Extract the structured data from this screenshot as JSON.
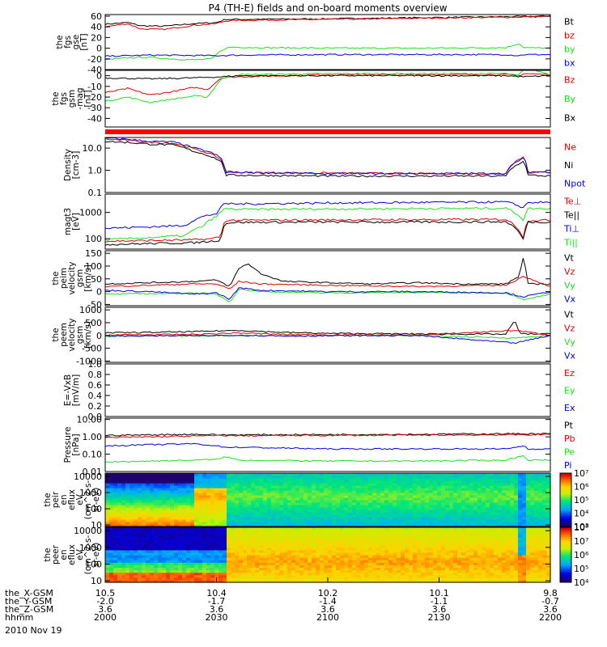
{
  "title": "P4 (TH-E) fields and on-board moments overview",
  "colors": {
    "black": "#000000",
    "red": "#dd0000",
    "green": "#22dd22",
    "blue": "#0000dd"
  },
  "footer": {
    "rows": [
      {
        "label": "the_X-GSM",
        "values": [
          "10.5",
          "10.4",
          "10.2",
          "10.1",
          "9.8"
        ]
      },
      {
        "label": "the_Y-GSM",
        "values": [
          "-2.0",
          "-1.7",
          "-1.4",
          "-1.1",
          "-0.7"
        ]
      },
      {
        "label": "the_Z-GSM",
        "values": [
          "3.6",
          "3.6",
          "3.6",
          "3.6",
          "3.6"
        ]
      },
      {
        "label": "hhmm",
        "values": [
          "2000",
          "2030",
          "2100",
          "2130",
          "2200"
        ]
      }
    ],
    "date": "2010 Nov 19"
  },
  "chart_data": [
    {
      "id": "fgs-gse",
      "type": "line",
      "ylabel": [
        "the",
        "fgs",
        "gse",
        "[nT]"
      ],
      "scale": "linear",
      "ylim": [
        -40,
        63
      ],
      "yticks": [
        -40,
        -20,
        0,
        20,
        40,
        60
      ],
      "series": [
        {
          "name": "Bt",
          "color": "black",
          "x": [
            0,
            0.05,
            0.08,
            0.13,
            0.2,
            0.25,
            0.27,
            0.3,
            0.5,
            0.7,
            0.9,
            0.99,
            1
          ],
          "values": [
            45,
            48,
            42,
            41,
            46,
            48,
            54,
            54,
            55,
            57,
            59,
            60,
            61
          ]
        },
        {
          "name": "bz",
          "color": "red",
          "x": [
            0,
            0.05,
            0.08,
            0.13,
            0.2,
            0.25,
            0.27,
            0.3,
            0.5,
            0.7,
            0.9,
            0.99,
            1
          ],
          "values": [
            40,
            46,
            36,
            35,
            43,
            46,
            51,
            52,
            54,
            56,
            58,
            59,
            60
          ]
        },
        {
          "name": "by",
          "color": "green",
          "x": [
            0,
            0.05,
            0.1,
            0.15,
            0.2,
            0.24,
            0.26,
            0.28,
            0.35,
            0.5,
            0.7,
            0.9,
            0.93,
            0.94,
            1
          ],
          "values": [
            -22,
            -18,
            -17,
            -20,
            -22,
            -20,
            -4,
            2,
            1,
            0,
            0,
            1,
            9,
            1,
            0
          ]
        },
        {
          "name": "bx",
          "color": "blue",
          "x": [
            0,
            0.1,
            0.25,
            0.3,
            0.5,
            0.7,
            0.9,
            0.93,
            0.94,
            1
          ],
          "values": [
            -15,
            -13,
            -14,
            -13,
            -12,
            -12,
            -12,
            -14,
            -12,
            -12
          ]
        }
      ]
    },
    {
      "id": "fgs-gsm-mag",
      "type": "line",
      "ylabel": [
        "the",
        "fgs",
        "gsm",
        "-mag",
        "[nT]"
      ],
      "scale": "linear",
      "ylim": [
        -48,
        5
      ],
      "yticks": [
        -40,
        -30,
        -20,
        -10,
        0
      ],
      "series": [
        {
          "name": "Bz",
          "color": "red",
          "x": [
            0,
            0.05,
            0.1,
            0.15,
            0.2,
            0.23,
            0.26,
            0.3,
            0.5,
            0.7,
            0.9,
            0.93,
            0.94,
            1
          ],
          "values": [
            -16,
            -12,
            -18,
            -15,
            -11,
            -13,
            -2,
            -1,
            1,
            1,
            1,
            0,
            2,
            1
          ]
        },
        {
          "name": "By",
          "color": "green",
          "x": [
            0,
            0.05,
            0.1,
            0.15,
            0.2,
            0.23,
            0.26,
            0.3,
            0.5,
            0.7,
            0.9,
            0.93,
            0.94,
            1
          ],
          "values": [
            -24,
            -20,
            -25,
            -22,
            -19,
            -20,
            -3,
            1,
            2,
            2,
            2,
            0,
            8,
            1
          ]
        },
        {
          "name": "Bx",
          "color": "black",
          "x": [
            0,
            0.1,
            0.2,
            0.26,
            0.3,
            0.5,
            0.7,
            0.9,
            0.94,
            1
          ],
          "values": [
            -2,
            -3,
            -2,
            -1,
            0,
            0,
            0,
            0,
            -1,
            0
          ]
        }
      ]
    },
    {
      "id": "gap",
      "type": "bar"
    },
    {
      "id": "density",
      "type": "line",
      "ylabel": [
        "Density",
        "[cm-3]"
      ],
      "scale": "log",
      "ylim": [
        0.1,
        30
      ],
      "yticks": [
        0.1,
        1.0,
        10.0
      ],
      "yticklabels": [
        "0.1",
        "1.0",
        "10.0"
      ],
      "series": [
        {
          "name": "Ne",
          "color": "red",
          "x": [
            0,
            0.05,
            0.1,
            0.15,
            0.2,
            0.24,
            0.26,
            0.27,
            0.3,
            0.5,
            0.7,
            0.9,
            0.94,
            0.95,
            1
          ],
          "values": [
            25,
            22,
            18,
            17,
            9,
            5,
            3,
            0.9,
            0.8,
            0.75,
            0.7,
            0.7,
            4,
            0.8,
            0.8
          ]
        },
        {
          "name": "Ni",
          "color": "black",
          "x": [
            0,
            0.05,
            0.1,
            0.15,
            0.2,
            0.24,
            0.26,
            0.27,
            0.3,
            0.5,
            0.7,
            0.9,
            0.94,
            0.95,
            1
          ],
          "values": [
            20,
            18,
            15,
            14,
            7,
            4,
            2.5,
            0.6,
            0.6,
            0.55,
            0.55,
            0.55,
            2.5,
            0.6,
            0.55
          ]
        },
        {
          "name": "Npot",
          "color": "blue",
          "x": [
            0,
            0.05,
            0.1,
            0.15,
            0.2,
            0.24,
            0.26,
            0.27,
            0.3,
            0.5,
            0.7,
            0.9,
            0.94,
            0.95,
            1
          ],
          "values": [
            28,
            25,
            20,
            19,
            10,
            6,
            3.5,
            0.8,
            0.8,
            0.7,
            0.72,
            0.72,
            3.5,
            0.85,
            0.85
          ]
        }
      ]
    },
    {
      "id": "temperature",
      "type": "line",
      "ylabel": [
        "magt3",
        "[eV]"
      ],
      "scale": "log",
      "ylim": [
        40,
        5000
      ],
      "yticks": [
        100,
        1000
      ],
      "yticklabels": [
        "100",
        "1000"
      ],
      "series": [
        {
          "name": "Te⊥",
          "color": "red",
          "x": [
            0,
            0.1,
            0.2,
            0.24,
            0.26,
            0.27,
            0.3,
            0.5,
            0.7,
            0.9,
            0.94,
            0.95,
            1
          ],
          "values": [
            80,
            85,
            90,
            100,
            120,
            500,
            500,
            520,
            530,
            540,
            100,
            500,
            500
          ]
        },
        {
          "name": "Te||",
          "color": "black",
          "x": [
            0,
            0.1,
            0.2,
            0.24,
            0.26,
            0.27,
            0.3,
            0.5,
            0.7,
            0.9,
            0.94,
            0.95,
            1
          ],
          "values": [
            60,
            65,
            70,
            80,
            90,
            400,
            420,
            430,
            430,
            440,
            80,
            430,
            430
          ]
        },
        {
          "name": "Ti⊥",
          "color": "blue",
          "x": [
            0,
            0.1,
            0.18,
            0.22,
            0.25,
            0.27,
            0.3,
            0.5,
            0.7,
            0.9,
            0.94,
            0.95,
            1
          ],
          "values": [
            250,
            280,
            320,
            700,
            900,
            2200,
            2100,
            2300,
            2400,
            2500,
            1500,
            2400,
            2400
          ]
        },
        {
          "name": "Ti||",
          "color": "green",
          "x": [
            0,
            0.1,
            0.18,
            0.22,
            0.25,
            0.27,
            0.3,
            0.5,
            0.7,
            0.9,
            0.94,
            0.95,
            1
          ],
          "values": [
            90,
            110,
            130,
            300,
            700,
            1400,
            1300,
            1350,
            1400,
            1450,
            500,
            1400,
            1400
          ]
        }
      ]
    },
    {
      "id": "peim-velocity",
      "type": "line",
      "ylabel": [
        "the",
        "peim",
        "velocity",
        "gsm",
        "[km/s]"
      ],
      "scale": "linear",
      "ylim": [
        -55,
        160
      ],
      "yticks": [
        -50,
        0,
        50,
        100,
        150
      ],
      "series": [
        {
          "name": "Vt",
          "color": "black",
          "x": [
            0,
            0.1,
            0.2,
            0.25,
            0.28,
            0.3,
            0.32,
            0.35,
            0.4,
            0.5,
            0.6,
            0.7,
            0.8,
            0.9,
            0.93,
            0.94,
            0.95,
            1
          ],
          "values": [
            30,
            35,
            40,
            45,
            20,
            90,
            110,
            70,
            40,
            35,
            30,
            35,
            30,
            30,
            60,
            140,
            30,
            30
          ]
        },
        {
          "name": "Vz",
          "color": "red",
          "x": [
            0,
            0.1,
            0.2,
            0.25,
            0.28,
            0.3,
            0.35,
            0.5,
            0.7,
            0.9,
            0.94,
            1
          ],
          "values": [
            20,
            25,
            30,
            30,
            10,
            40,
            30,
            25,
            20,
            25,
            60,
            20
          ]
        },
        {
          "name": "Vy",
          "color": "green",
          "x": [
            0,
            0.1,
            0.2,
            0.25,
            0.28,
            0.3,
            0.35,
            0.5,
            0.7,
            0.9,
            0.94,
            1
          ],
          "values": [
            -10,
            -8,
            -5,
            -10,
            -40,
            10,
            0,
            -5,
            -3,
            -5,
            -30,
            -10
          ]
        },
        {
          "name": "Vx",
          "color": "blue",
          "x": [
            0,
            0.1,
            0.2,
            0.25,
            0.28,
            0.3,
            0.35,
            0.5,
            0.7,
            0.9,
            0.94,
            1
          ],
          "values": [
            5,
            0,
            -10,
            -5,
            -30,
            15,
            5,
            0,
            0,
            -5,
            -20,
            0
          ]
        }
      ]
    },
    {
      "id": "peem-velocity",
      "type": "line",
      "ylabel": [
        "the",
        "peem",
        "velocity",
        "gsm",
        "[km/s]"
      ],
      "scale": "linear",
      "ylim": [
        -1050,
        1100
      ],
      "yticks": [
        -1000,
        -500,
        0,
        500,
        1000
      ],
      "series": [
        {
          "name": "Vt",
          "color": "black",
          "x": [
            0,
            0.1,
            0.2,
            0.3,
            0.4,
            0.5,
            0.7,
            0.9,
            0.92,
            0.93,
            0.94,
            1
          ],
          "values": [
            100,
            120,
            150,
            200,
            120,
            80,
            60,
            50,
            600,
            100,
            60,
            60
          ]
        },
        {
          "name": "Vz",
          "color": "red",
          "x": [
            0,
            0.2,
            0.3,
            0.4,
            0.7,
            0.92,
            1
          ],
          "values": [
            20,
            40,
            100,
            40,
            10,
            200,
            10
          ]
        },
        {
          "name": "Vy",
          "color": "green",
          "x": [
            0,
            0.2,
            0.3,
            0.4,
            0.7,
            0.92,
            1
          ],
          "values": [
            -30,
            -20,
            0,
            -10,
            0,
            -100,
            0
          ]
        },
        {
          "name": "Vx",
          "color": "blue",
          "x": [
            0,
            0.2,
            0.3,
            0.4,
            0.7,
            0.92,
            1
          ],
          "values": [
            -20,
            -10,
            10,
            -20,
            0,
            -300,
            0
          ]
        }
      ]
    },
    {
      "id": "efield",
      "type": "line",
      "ylabel": [
        "E=-VxB",
        "[mV/m]"
      ],
      "scale": "linear",
      "ylim": [
        0,
        1
      ],
      "yticks": [
        0,
        0.2,
        0.4,
        0.6,
        0.8,
        1
      ],
      "yticklabels": [
        "0.0",
        "0.2",
        "0.4",
        "0.6",
        "0.8",
        "1.0"
      ],
      "series": [
        {
          "name": "Ez",
          "color": "red",
          "x": [],
          "values": []
        },
        {
          "name": "Ey",
          "color": "green",
          "x": [],
          "values": []
        },
        {
          "name": "Ex",
          "color": "blue",
          "x": [],
          "values": []
        }
      ]
    },
    {
      "id": "pressure",
      "type": "line",
      "ylabel": [
        "Pressure",
        "[nPa]"
      ],
      "scale": "log",
      "ylim": [
        0.01,
        12
      ],
      "yticks": [
        0.01,
        0.1,
        1.0,
        10.0
      ],
      "yticklabels": [
        "0.01",
        "0.10",
        "1.00",
        "10.00"
      ],
      "series": [
        {
          "name": "Pt",
          "color": "black",
          "x": [
            0,
            0.1,
            0.2,
            0.26,
            0.3,
            0.5,
            0.7,
            0.9,
            1
          ],
          "values": [
            1.2,
            1.3,
            1.4,
            1.3,
            1.3,
            1.35,
            1.4,
            1.5,
            1.5
          ]
        },
        {
          "name": "Pb",
          "color": "red",
          "x": [
            0,
            0.1,
            0.2,
            0.26,
            0.3,
            0.5,
            0.7,
            0.9,
            1
          ],
          "values": [
            0.9,
            1.0,
            1.1,
            1.2,
            1.15,
            1.2,
            1.25,
            1.3,
            1.35
          ]
        },
        {
          "name": "Pe",
          "color": "green",
          "x": [
            0,
            0.1,
            0.2,
            0.25,
            0.27,
            0.3,
            0.5,
            0.7,
            0.9,
            0.94,
            0.95,
            1
          ],
          "values": [
            0.035,
            0.04,
            0.045,
            0.05,
            0.07,
            0.045,
            0.04,
            0.04,
            0.045,
            0.08,
            0.045,
            0.045
          ]
        },
        {
          "name": "Pi",
          "color": "blue",
          "x": [
            0,
            0.1,
            0.2,
            0.25,
            0.27,
            0.3,
            0.5,
            0.7,
            0.9,
            0.94,
            0.95,
            1
          ],
          "values": [
            0.3,
            0.35,
            0.4,
            0.3,
            0.25,
            0.25,
            0.2,
            0.2,
            0.2,
            0.3,
            0.2,
            0.2
          ]
        }
      ]
    },
    {
      "id": "peir-eflux",
      "type": "heatmap",
      "ylabel": [
        "the",
        "peir",
        "en",
        "eflux",
        "eV",
        "(cm^2-s-",
        "sr-eV)"
      ],
      "scale": "log",
      "ylim": [
        8,
        16000
      ],
      "yticks": [
        10,
        100,
        1000,
        10000
      ],
      "yticklabels": [
        "10",
        "100",
        "1000",
        "10000"
      ],
      "colorbar": {
        "min_exp": 3,
        "max_exp": 7,
        "labels": [
          "10³",
          "10⁴",
          "10⁵",
          "10⁶",
          "10⁷"
        ]
      }
    },
    {
      "id": "peer-eflux",
      "type": "heatmap",
      "ylabel": [
        "the",
        "peer",
        "en",
        "eflux",
        "eV",
        "(cm^2-s-",
        "sr-eV)"
      ],
      "scale": "log",
      "ylim": [
        8,
        16000
      ],
      "yticks": [
        10,
        100,
        1000,
        10000
      ],
      "yticklabels": [
        "10",
        "100",
        "1000",
        "10000"
      ],
      "colorbar": {
        "min_exp": 4,
        "max_exp": 8,
        "labels": [
          "10⁴",
          "10⁵",
          "10⁶",
          "10⁷",
          "10⁸"
        ]
      }
    }
  ]
}
